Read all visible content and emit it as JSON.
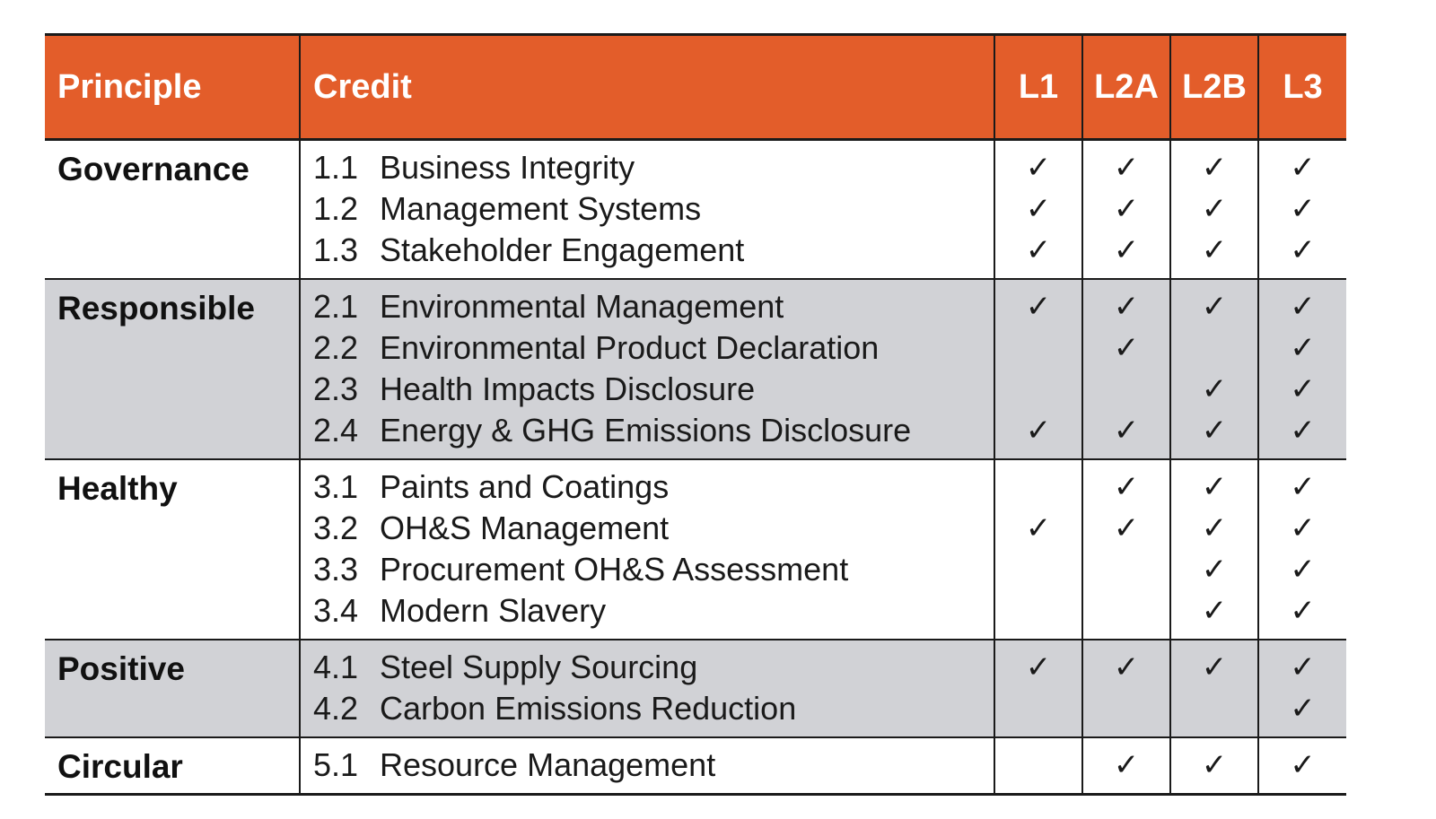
{
  "table": {
    "headers": {
      "principle": "Principle",
      "credit": "Credit",
      "levels": [
        "L1",
        "L2A",
        "L2B",
        "L3"
      ]
    },
    "check_mark": "✓",
    "colors": {
      "header_bg": "#e35d2a",
      "header_text": "#ffffff",
      "shaded_row": "#d1d2d6",
      "border": "#1a1a1a"
    },
    "groups": [
      {
        "principle": "Governance",
        "shaded": false,
        "credits": [
          {
            "num": "1.1",
            "title": "Business Integrity",
            "checks": [
              true,
              true,
              true,
              true
            ]
          },
          {
            "num": "1.2",
            "title": "Management Systems",
            "checks": [
              true,
              true,
              true,
              true
            ]
          },
          {
            "num": "1.3",
            "title": "Stakeholder Engagement",
            "checks": [
              true,
              true,
              true,
              true
            ]
          }
        ]
      },
      {
        "principle": "Responsible",
        "shaded": true,
        "credits": [
          {
            "num": "2.1",
            "title": "Environmental Management",
            "checks": [
              true,
              true,
              true,
              true
            ]
          },
          {
            "num": "2.2",
            "title": "Environmental Product Declaration",
            "checks": [
              false,
              true,
              false,
              true
            ]
          },
          {
            "num": "2.3",
            "title": "Health Impacts Disclosure",
            "checks": [
              false,
              false,
              true,
              true
            ]
          },
          {
            "num": "2.4",
            "title": "Energy & GHG Emissions Disclosure",
            "checks": [
              true,
              true,
              true,
              true
            ]
          }
        ]
      },
      {
        "principle": "Healthy",
        "shaded": false,
        "credits": [
          {
            "num": "3.1",
            "title": "Paints and Coatings",
            "checks": [
              false,
              true,
              true,
              true
            ]
          },
          {
            "num": "3.2",
            "title": "OH&S Management",
            "checks": [
              true,
              true,
              true,
              true
            ]
          },
          {
            "num": "3.3",
            "title": "Procurement OH&S Assessment",
            "checks": [
              false,
              false,
              true,
              true
            ]
          },
          {
            "num": "3.4",
            "title": "Modern Slavery",
            "checks": [
              false,
              false,
              true,
              true
            ]
          }
        ]
      },
      {
        "principle": "Positive",
        "shaded": true,
        "credits": [
          {
            "num": "4.1",
            "title": "Steel Supply Sourcing",
            "checks": [
              true,
              true,
              true,
              true
            ]
          },
          {
            "num": "4.2",
            "title": "Carbon Emissions Reduction",
            "checks": [
              false,
              false,
              false,
              true
            ]
          }
        ]
      },
      {
        "principle": "Circular",
        "shaded": false,
        "credits": [
          {
            "num": "5.1",
            "title": "Resource Management",
            "checks": [
              false,
              true,
              true,
              true
            ]
          }
        ]
      }
    ]
  }
}
